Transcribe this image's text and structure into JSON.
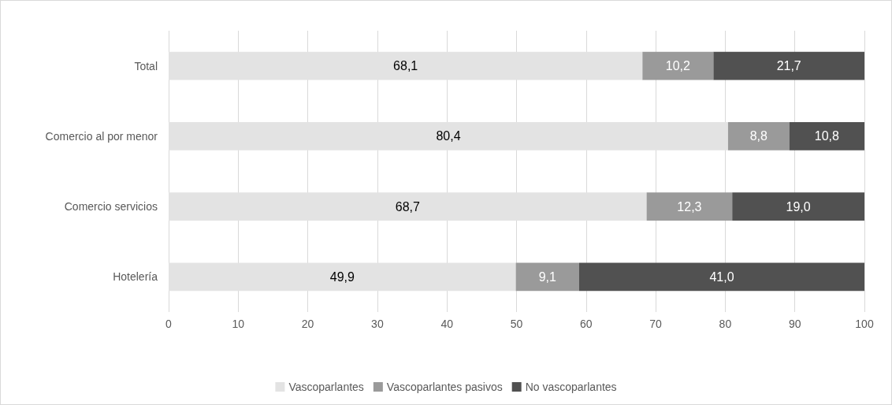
{
  "chart_data": {
    "type": "bar",
    "orientation": "horizontal",
    "stacked": true,
    "categories": [
      "Total",
      "Comercio al por menor",
      "Comercio servicios",
      "Hotelería"
    ],
    "series": [
      {
        "name": "Vascoparlantes",
        "color": "#e3e3e3",
        "values": [
          68.1,
          80.4,
          68.7,
          49.9
        ],
        "value_labels": [
          "68,1",
          "80,4",
          "68,7",
          "49,9"
        ]
      },
      {
        "name": "Vascoparlantes pasivos",
        "color": "#9a9a9a",
        "values": [
          10.2,
          8.8,
          12.3,
          9.1
        ],
        "value_labels": [
          "10,2",
          "8,8",
          "12,3",
          "9,1"
        ]
      },
      {
        "name": "No vascoparlantes",
        "color": "#515151",
        "values": [
          21.7,
          10.8,
          19.0,
          41.0
        ],
        "value_labels": [
          "21,7",
          "10,8",
          "19,0",
          "41,0"
        ]
      }
    ],
    "xlim": [
      0,
      100
    ],
    "xticks": [
      0,
      10,
      20,
      30,
      40,
      50,
      60,
      70,
      80,
      90,
      100
    ],
    "grid": "x",
    "legend": "bottom"
  }
}
